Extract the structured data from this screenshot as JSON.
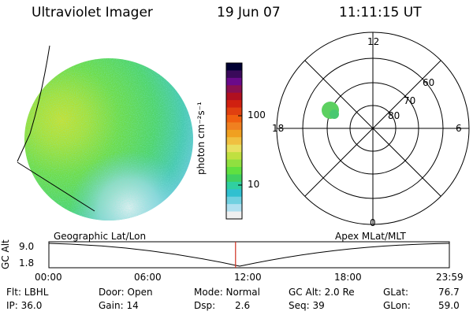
{
  "header": {
    "instrument": "Ultraviolet Imager",
    "date": "19 Jun 07",
    "time": "11:11:15 UT"
  },
  "colorbar": {
    "label": "photon cm⁻²s⁻¹",
    "ticks": [
      "100",
      "10"
    ],
    "colors": [
      "#000033",
      "#3a0a5a",
      "#6a0a8a",
      "#8a1050",
      "#b01020",
      "#d02010",
      "#e04010",
      "#f06010",
      "#f08020",
      "#f0a020",
      "#f0c040",
      "#e8e060",
      "#c0e040",
      "#90e040",
      "#60e040",
      "#40d060",
      "#30d0a0",
      "#30c0d0",
      "#70d0e0",
      "#b0e0f0",
      "#f0f0f0"
    ]
  },
  "polar": {
    "mlt_labels": {
      "top": "12",
      "left": "18",
      "right": "6",
      "bottom": "0"
    },
    "lat_labels": [
      "60",
      "70",
      "80"
    ]
  },
  "timeline": {
    "ylabel": "GC Alt",
    "yticks": [
      "9.0",
      "1.8"
    ],
    "left_title": "Geographic Lat/Lon",
    "right_title": "Apex  MLat/MLT",
    "xticks": [
      "00:00",
      "06:00",
      "12:00",
      "18:00",
      "23:59"
    ],
    "marker_fraction": 0.4661
  },
  "info": {
    "flt": "Flt: LBHL",
    "ip": "IP: 36.0",
    "door": "Door: Open",
    "gain": "Gain: 14",
    "mode": "Mode: Normal",
    "dsp_label": "Dsp:",
    "dsp_value": "2.6",
    "gcalt": "GC Alt: 2.0 Re",
    "seq": "Seq: 39",
    "glat_label": "GLat:",
    "glat_value": "76.7",
    "glon_label": "GLon:",
    "glon_value": "59.0"
  }
}
